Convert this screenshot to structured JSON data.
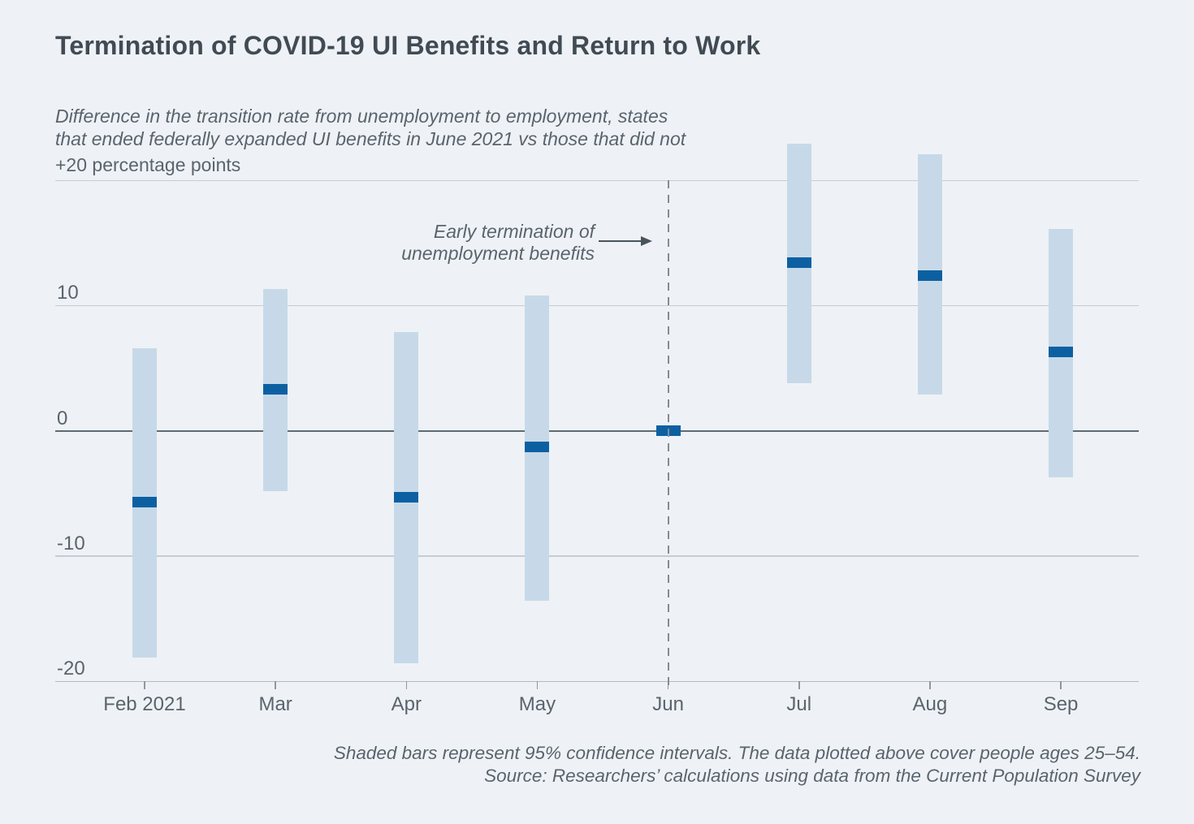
{
  "title": "Termination of COVID-19 UI Benefits and Return to Work",
  "subtitle": {
    "line1": "Difference in the transition rate from unemployment to employment, states",
    "line2": "that ended federally expanded UI benefits in June 2021 vs those that did not"
  },
  "y_axis_unit_label": "+20 percentage points",
  "annotation": {
    "line1": "Early termination of",
    "line2": "unemployment benefits"
  },
  "footer": {
    "line1": "Shaded bars represent 95% confidence intervals. The data plotted above cover people ages 25–54.",
    "line2": "Source: Researchers’ calculations using data from the Current Population Survey"
  },
  "colors": {
    "background": "#eef2f6",
    "ci_bar": "#c7d9e8",
    "estimate_marker": "#0c60a2",
    "title_text": "#414b54",
    "muted_text": "#5a646d",
    "gridline": "#c4cdd4",
    "zero_line": "#5e6a74",
    "axis_line": "#b2bcc4",
    "tick": "#8d98a1",
    "dashed_line": "#818c95",
    "arrow": "#49535c"
  },
  "chart_data": {
    "type": "bar",
    "subtype": "confidence-interval-range-bars-with-point-estimates",
    "categories": [
      "Feb 2021",
      "Mar",
      "Apr",
      "May",
      "Jun",
      "Jul",
      "Aug",
      "Sep"
    ],
    "series": [
      {
        "name": "Point estimate (difference in transition rate, pp)",
        "values": [
          -5.7,
          3.3,
          -5.3,
          -1.3,
          0,
          13.4,
          12.4,
          6.3
        ]
      },
      {
        "name": "95% CI upper",
        "values": [
          6.6,
          11.3,
          7.9,
          10.8,
          0,
          22.9,
          22.1,
          16.1
        ]
      },
      {
        "name": "95% CI lower",
        "values": [
          -18.1,
          -4.8,
          -18.6,
          -13.6,
          0,
          3.8,
          2.9,
          -3.7
        ]
      }
    ],
    "title": "Termination of COVID-19 UI Benefits and Return to Work",
    "xlabel": "",
    "ylabel": "percentage points",
    "ylim": [
      -20,
      24
    ],
    "grid": true,
    "gridline_values": [
      20,
      10,
      0,
      -10,
      -20
    ],
    "yticks": [
      {
        "value": 10,
        "label": "10"
      },
      {
        "value": 0,
        "label": "0"
      },
      {
        "value": -10,
        "label": "-10"
      },
      {
        "value": -20,
        "label": "-20"
      }
    ],
    "dashed_line_category": "Jun",
    "legend_position": "none"
  }
}
